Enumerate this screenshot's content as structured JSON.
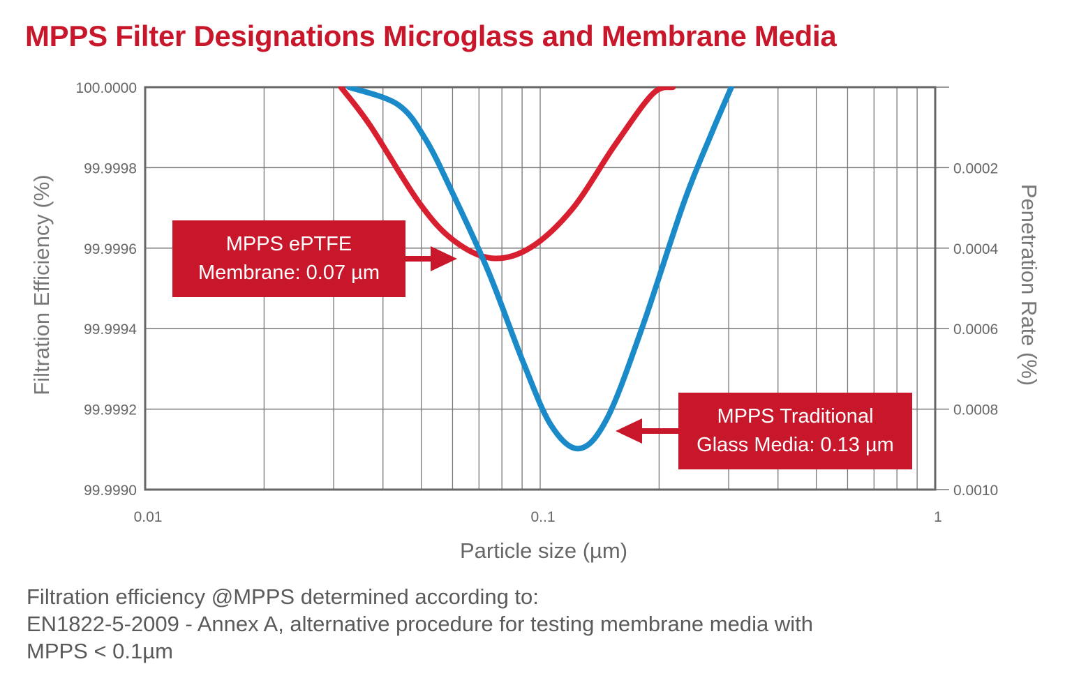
{
  "chart_data": {
    "type": "line",
    "title": "MPPS Filter Designations Microglass and Membrane Media",
    "xlabel": "Particle size (µm)",
    "ylabel": "Filtration Efficiency (%)",
    "y2label": "Penetration Rate (%)",
    "xscale": "log",
    "xlim": [
      0.01,
      1
    ],
    "ylim": [
      99.999,
      100.0
    ],
    "xticks": [
      {
        "v": 0.01,
        "label": "0.01"
      },
      {
        "v": 0.1,
        "label": "0..1"
      },
      {
        "v": 1,
        "label": "1"
      }
    ],
    "yticks": [
      {
        "v": 100.0,
        "label": "100.0000"
      },
      {
        "v": 99.9998,
        "label": "99.9998"
      },
      {
        "v": 99.9996,
        "label": "99.9996"
      },
      {
        "v": 99.9994,
        "label": "99.9994"
      },
      {
        "v": 99.9992,
        "label": "99.9992"
      },
      {
        "v": 99.999,
        "label": "99.9990"
      }
    ],
    "y2ticks": [
      {
        "v": 99.9998,
        "label": "0.0002"
      },
      {
        "v": 99.9996,
        "label": "0.0004"
      },
      {
        "v": 99.9994,
        "label": "0.0006"
      },
      {
        "v": 99.9992,
        "label": "0.0008"
      },
      {
        "v": 99.999,
        "label": "0.0010"
      }
    ],
    "grid": true,
    "series": [
      {
        "color": "#d71f30",
        "x": [
          0.0313,
          0.0371,
          0.0493,
          0.0604,
          0.0755,
          0.0944,
          0.1205,
          0.1538,
          0.1925,
          0.217
        ],
        "y": [
          100.0,
          99.999905,
          99.999714,
          99.999619,
          99.999575,
          99.999601,
          99.999697,
          99.999853,
          99.999983,
          100.0
        ]
      },
      {
        "color": "#1a8ac9",
        "x": [
          0.0328,
          0.0436,
          0.0513,
          0.0604,
          0.074,
          0.0907,
          0.1067,
          0.1256,
          0.1477,
          0.1811,
          0.2312,
          0.272,
          0.3048
        ],
        "y": [
          100.0,
          99.999957,
          99.99987,
          99.999731,
          99.999541,
          99.999315,
          99.999159,
          99.999102,
          99.999177,
          99.999402,
          99.999714,
          99.999887,
          100.0
        ]
      }
    ],
    "annotations": [
      {
        "lines": [
          "MPPS ePTFE",
          "Membrane: 0.07 µm"
        ],
        "x": 0.07
      },
      {
        "lines": [
          "MPPS Traditional",
          "Glass Media: 0.13 µm"
        ],
        "x": 0.13
      }
    ],
    "colors": {
      "accent": "#c8162a",
      "grid": "#777777"
    }
  },
  "footnote": [
    "Filtration efficiency @MPPS determined according to:",
    "EN1822-5-2009 - Annex A, alternative procedure for testing membrane media with",
    "MPPS < 0.1µm"
  ]
}
